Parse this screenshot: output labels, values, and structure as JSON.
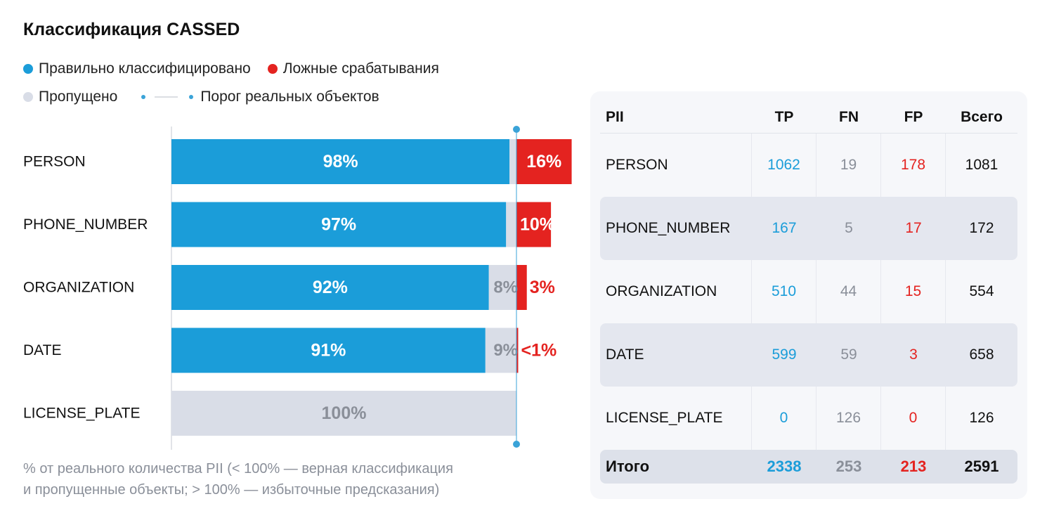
{
  "title": "Классификация CASSED",
  "colors": {
    "tp": "#1b9dd9",
    "fp": "#e42320",
    "fn": "#d9dde7",
    "fn_text": "#8a8f99",
    "threshold": "#3aa3d8"
  },
  "legend": {
    "tp": "Правильно классифицировано",
    "fp": "Ложные срабатывания",
    "fn": "Пропущено",
    "threshold": "Порог реальных объектов"
  },
  "note_line1": "% от реального количества PII (< 100% — верная классификация",
  "note_line2": "и пропущенные объекты; > 100% — избыточные предсказания)",
  "chart_data": {
    "type": "bar",
    "orientation": "horizontal",
    "stacked": true,
    "categories": [
      "PERSON",
      "PHONE_NUMBER",
      "ORGANIZATION",
      "DATE",
      "LICENSE_PLATE"
    ],
    "series": [
      {
        "name": "Правильно классифицировано",
        "values": [
          98,
          97,
          92,
          91,
          0
        ],
        "labels": [
          "98%",
          "97%",
          "92%",
          "91%",
          ""
        ]
      },
      {
        "name": "Пропущено",
        "values": [
          2,
          3,
          8,
          9,
          100
        ],
        "labels": [
          "",
          "",
          "8%",
          "9%",
          "100%"
        ]
      },
      {
        "name": "Ложные срабатывания",
        "values": [
          16,
          10,
          3,
          0.5,
          0
        ],
        "labels": [
          "16%",
          "10%",
          "3%",
          "<1%",
          ""
        ]
      }
    ],
    "threshold": 100,
    "unit": "%"
  },
  "table": {
    "headers": [
      "PII",
      "TP",
      "FN",
      "FP",
      "Всего"
    ],
    "rows": [
      {
        "name": "PERSON",
        "tp": "1062",
        "fn": "19",
        "fp": "178",
        "total": "1081"
      },
      {
        "name": "PHONE_NUMBER",
        "tp": "167",
        "fn": "5",
        "fp": "17",
        "total": "172"
      },
      {
        "name": "ORGANIZATION",
        "tp": "510",
        "fn": "44",
        "fp": "15",
        "total": "554"
      },
      {
        "name": "DATE",
        "tp": "599",
        "fn": "59",
        "fp": "3",
        "total": "658"
      },
      {
        "name": "LICENSE_PLATE",
        "tp": "0",
        "fn": "126",
        "fp": "0",
        "total": "126"
      }
    ],
    "totals": {
      "name": "Итого",
      "tp": "2338",
      "fn": "253",
      "fp": "213",
      "total": "2591"
    }
  }
}
